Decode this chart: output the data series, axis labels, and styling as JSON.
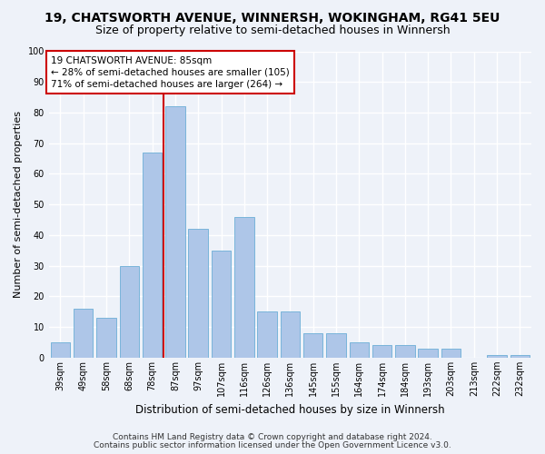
{
  "title": "19, CHATSWORTH AVENUE, WINNERSH, WOKINGHAM, RG41 5EU",
  "subtitle": "Size of property relative to semi-detached houses in Winnersh",
  "xlabel": "Distribution of semi-detached houses by size in Winnersh",
  "ylabel": "Number of semi-detached properties",
  "categories": [
    "39sqm",
    "49sqm",
    "58sqm",
    "68sqm",
    "78sqm",
    "87sqm",
    "97sqm",
    "107sqm",
    "116sqm",
    "126sqm",
    "136sqm",
    "145sqm",
    "155sqm",
    "164sqm",
    "174sqm",
    "184sqm",
    "193sqm",
    "203sqm",
    "213sqm",
    "222sqm",
    "232sqm"
  ],
  "values": [
    5,
    16,
    13,
    30,
    67,
    82,
    42,
    35,
    46,
    15,
    15,
    8,
    8,
    5,
    4,
    4,
    3,
    3,
    0,
    1,
    1
  ],
  "bar_color": "#aec6e8",
  "bar_edge_color": "#6baed6",
  "vline_color": "#cc0000",
  "annotation_title": "19 CHATSWORTH AVENUE: 85sqm",
  "annotation_line1": "← 28% of semi-detached houses are smaller (105)",
  "annotation_line2": "71% of semi-detached houses are larger (264) →",
  "annotation_box_color": "#ffffff",
  "annotation_box_edge": "#cc0000",
  "ylim": [
    0,
    100
  ],
  "footer1": "Contains HM Land Registry data © Crown copyright and database right 2024.",
  "footer2": "Contains public sector information licensed under the Open Government Licence v3.0.",
  "bg_color": "#eef2f9",
  "grid_color": "#ffffff",
  "title_fontsize": 10,
  "subtitle_fontsize": 9,
  "ylabel_fontsize": 8,
  "xlabel_fontsize": 8.5,
  "tick_fontsize": 7,
  "annot_fontsize": 7.5,
  "footer_fontsize": 6.5
}
